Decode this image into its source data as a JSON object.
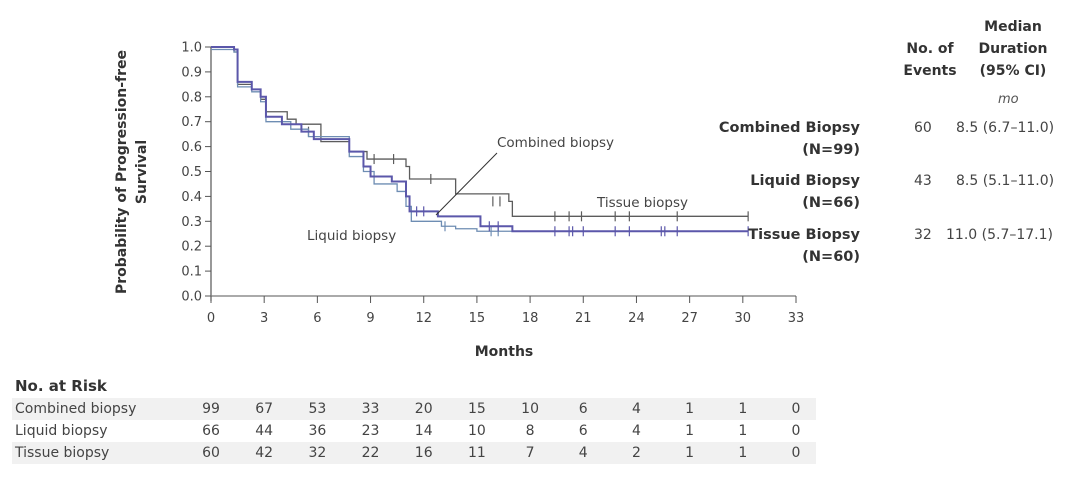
{
  "chart_data": {
    "type": "line",
    "subtype": "kaplan-meier step",
    "title": "",
    "xlabel": "Months",
    "ylabel": "Probability of Progression-free Survival",
    "xlim": [
      0,
      33
    ],
    "ylim": [
      0,
      1.0
    ],
    "xticks": [
      "0",
      "3",
      "6",
      "9",
      "12",
      "15",
      "18",
      "21",
      "24",
      "27",
      "30",
      "33"
    ],
    "yticks": [
      "0.0",
      "0.1",
      "0.2",
      "0.3",
      "0.4",
      "0.5",
      "0.6",
      "0.7",
      "0.8",
      "0.9",
      "1.0"
    ],
    "grid": false,
    "series": [
      {
        "name": "Tissue biopsy",
        "color": "#5c5c5c",
        "steps": [
          [
            0,
            1.0
          ],
          [
            1.3,
            0.98
          ],
          [
            1.5,
            0.85
          ],
          [
            2.3,
            0.83
          ],
          [
            2.8,
            0.79
          ],
          [
            3.1,
            0.74
          ],
          [
            4.3,
            0.71
          ],
          [
            4.8,
            0.69
          ],
          [
            6.2,
            0.62
          ],
          [
            7.8,
            0.58
          ],
          [
            8.8,
            0.55
          ],
          [
            11.0,
            0.52
          ],
          [
            11.2,
            0.47
          ],
          [
            13.8,
            0.41
          ],
          [
            16.8,
            0.38
          ],
          [
            17.0,
            0.32
          ],
          [
            30.3,
            0.32
          ]
        ],
        "censors": [
          [
            5.5,
            0.66
          ],
          [
            9.2,
            0.55
          ],
          [
            10.3,
            0.55
          ],
          [
            12.4,
            0.47
          ],
          [
            15.9,
            0.38
          ],
          [
            16.3,
            0.38
          ],
          [
            19.4,
            0.32
          ],
          [
            20.2,
            0.32
          ],
          [
            20.9,
            0.32
          ],
          [
            22.8,
            0.32
          ],
          [
            23.6,
            0.32
          ],
          [
            26.3,
            0.32
          ],
          [
            30.3,
            0.32
          ]
        ]
      },
      {
        "name": "Combined biopsy",
        "color": "#5b57aa",
        "steps": [
          [
            0,
            1.0
          ],
          [
            1.3,
            0.99
          ],
          [
            1.5,
            0.86
          ],
          [
            2.3,
            0.83
          ],
          [
            2.8,
            0.8
          ],
          [
            3.1,
            0.72
          ],
          [
            4.0,
            0.69
          ],
          [
            5.1,
            0.66
          ],
          [
            5.8,
            0.63
          ],
          [
            7.8,
            0.58
          ],
          [
            8.6,
            0.52
          ],
          [
            9.0,
            0.48
          ],
          [
            10.2,
            0.46
          ],
          [
            11.0,
            0.4
          ],
          [
            11.2,
            0.34
          ],
          [
            12.8,
            0.32
          ],
          [
            15.2,
            0.28
          ],
          [
            17.0,
            0.26
          ],
          [
            30.3,
            0.26
          ]
        ],
        "censors": [
          [
            11.6,
            0.34
          ],
          [
            12.0,
            0.34
          ],
          [
            15.7,
            0.28
          ],
          [
            16.2,
            0.28
          ],
          [
            19.4,
            0.26
          ],
          [
            20.2,
            0.26
          ],
          [
            20.4,
            0.26
          ],
          [
            21.0,
            0.26
          ],
          [
            22.8,
            0.26
          ],
          [
            23.6,
            0.26
          ],
          [
            25.4,
            0.26
          ],
          [
            25.6,
            0.26
          ],
          [
            26.3,
            0.26
          ],
          [
            30.3,
            0.26
          ]
        ]
      },
      {
        "name": "Liquid biopsy",
        "color": "#6e8db3",
        "steps": [
          [
            0,
            0.99
          ],
          [
            1.3,
            0.98
          ],
          [
            1.5,
            0.84
          ],
          [
            2.3,
            0.82
          ],
          [
            2.8,
            0.78
          ],
          [
            3.1,
            0.7
          ],
          [
            4.5,
            0.67
          ],
          [
            5.5,
            0.64
          ],
          [
            7.8,
            0.56
          ],
          [
            8.6,
            0.5
          ],
          [
            9.2,
            0.45
          ],
          [
            10.5,
            0.42
          ],
          [
            11.0,
            0.36
          ],
          [
            11.3,
            0.3
          ],
          [
            13.0,
            0.28
          ],
          [
            13.8,
            0.27
          ],
          [
            15.0,
            0.26
          ],
          [
            30.3,
            0.26
          ]
        ],
        "censors": [
          [
            13.2,
            0.28
          ],
          [
            15.8,
            0.26
          ],
          [
            16.2,
            0.26
          ]
        ]
      }
    ],
    "annotations": [
      "Combined biopsy",
      "Tissue biopsy",
      "Liquid biopsy"
    ]
  },
  "legend_table": {
    "headers": {
      "events_line1": "No. of",
      "events_line2": "Events",
      "median_line1": "Median",
      "median_line2": "Duration",
      "median_line3": "(95% CI)",
      "unit": "mo"
    },
    "rows": [
      {
        "group": "Combined Biopsy",
        "n": "(N=99)",
        "events": "60",
        "median": "8.5 (6.7–11.0)"
      },
      {
        "group": "Liquid Biopsy",
        "n": "(N=66)",
        "events": "43",
        "median": "8.5 (5.1–11.0)"
      },
      {
        "group": "Tissue Biopsy",
        "n": "(N=60)",
        "events": "32",
        "median": "11.0 (5.7–17.1)"
      }
    ]
  },
  "at_risk": {
    "title": "No. at Risk",
    "rows": [
      {
        "label": "Combined biopsy",
        "values": [
          "99",
          "67",
          "53",
          "33",
          "20",
          "15",
          "10",
          "6",
          "4",
          "1",
          "1",
          "0"
        ]
      },
      {
        "label": "Liquid biopsy",
        "values": [
          "66",
          "44",
          "36",
          "23",
          "14",
          "10",
          "8",
          "6",
          "4",
          "1",
          "1",
          "0"
        ]
      },
      {
        "label": "Tissue biopsy",
        "values": [
          "60",
          "42",
          "32",
          "22",
          "16",
          "11",
          "7",
          "4",
          "2",
          "1",
          "1",
          "0"
        ]
      }
    ]
  }
}
